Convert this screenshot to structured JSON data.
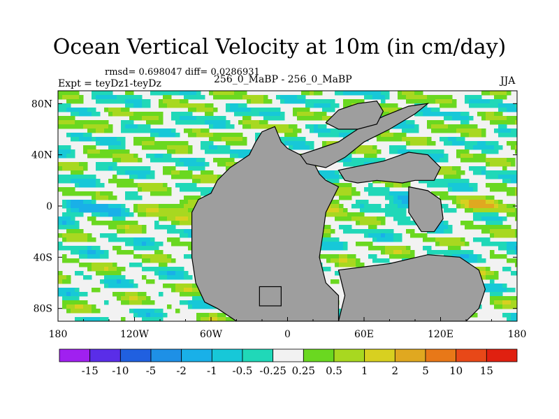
{
  "chart_data": {
    "type": "heatmap",
    "title": "Ocean Vertical Velocity at 10m (in cm/day)",
    "rmsd_text": "rmsd= 0.698047 diff= 0.0286931",
    "left_label": "Expt = teyDz1-teyDz",
    "center_label": "256_0_MaBP - 256_0_MaBP",
    "right_label": "JJA",
    "x_ticks": [
      "180",
      "120W",
      "60W",
      "0",
      "60E",
      "120E",
      "180"
    ],
    "x_tick_values": [
      -180,
      -120,
      -60,
      0,
      60,
      120,
      180
    ],
    "y_ticks": [
      "80N",
      "40N",
      "0",
      "40S",
      "80S"
    ],
    "y_tick_values": [
      80,
      40,
      0,
      -40,
      -80
    ],
    "xlim": [
      -180,
      180
    ],
    "ylim": [
      -90,
      90
    ],
    "colorbar_labels": [
      "-15",
      "-10",
      "-5",
      "-2",
      "-1",
      "-0.5",
      "-0.25",
      "0.25",
      "0.5",
      "1",
      "2",
      "5",
      "10",
      "15"
    ],
    "colorbar_colors": [
      "#a020f0",
      "#5a2de8",
      "#2060e0",
      "#1e90e6",
      "#19b0e8",
      "#17c8d8",
      "#20d8b8",
      "#f2f2f2",
      "#6ad820",
      "#a8d820",
      "#d8d020",
      "#e0a820",
      "#e87818",
      "#e84818",
      "#e02010"
    ],
    "land_color": "#9e9e9e"
  }
}
